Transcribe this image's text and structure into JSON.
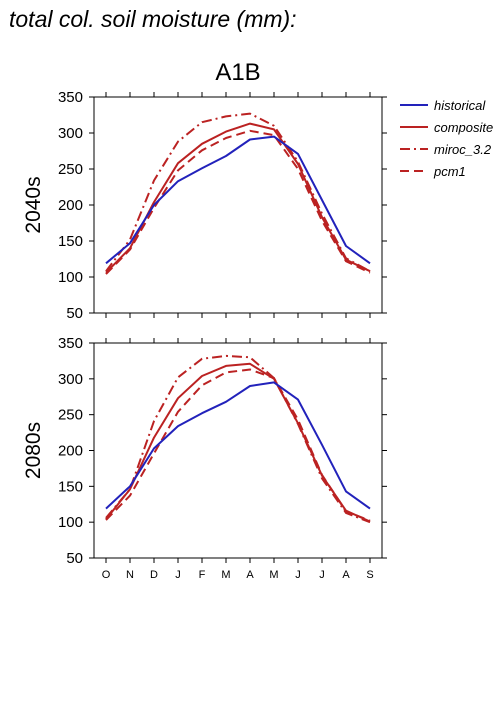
{
  "page": {
    "title": "total col. soil moisture (mm):"
  },
  "chart_data": {
    "type": "line",
    "title": "A1B",
    "categories": [
      "O",
      "N",
      "D",
      "J",
      "F",
      "M",
      "A",
      "M",
      "J",
      "J",
      "A",
      "S"
    ],
    "ylim": [
      50,
      350
    ],
    "yticks": [
      50,
      100,
      150,
      200,
      250,
      300,
      350
    ],
    "grid": false,
    "legend": {
      "position": "top-right",
      "entries": [
        {
          "name": "historical",
          "color": "#2222bb",
          "dash": "solid"
        },
        {
          "name": "composite",
          "color": "#bb2222",
          "dash": "solid"
        },
        {
          "name": "miroc_3.2",
          "color": "#bb2222",
          "dash": "dashdot"
        },
        {
          "name": "pcm1",
          "color": "#bb2222",
          "dash": "dashed"
        }
      ]
    },
    "panels": [
      {
        "ylabel": "2040s",
        "series": [
          {
            "name": "historical",
            "values": [
              119,
              147,
              200,
              233,
              251,
              268,
              291,
              295,
              271,
              207,
              143,
              119
            ]
          },
          {
            "name": "composite",
            "values": [
              106,
              140,
              204,
              258,
              285,
              302,
              313,
              305,
              257,
              183,
              124,
              108
            ]
          },
          {
            "name": "miroc_3.2",
            "values": [
              108,
              152,
              234,
              288,
              315,
              323,
              327,
              310,
              260,
              188,
              126,
              108
            ]
          },
          {
            "name": "pcm1",
            "values": [
              104,
              138,
              196,
              248,
              276,
              293,
              303,
              297,
              250,
              178,
              122,
              106
            ]
          }
        ]
      },
      {
        "ylabel": "2080s",
        "series": [
          {
            "name": "historical",
            "values": [
              119,
              150,
              203,
              234,
              252,
              268,
              290,
              295,
              271,
              208,
              143,
              119
            ]
          },
          {
            "name": "composite",
            "values": [
              104,
              146,
              218,
              273,
              304,
              318,
              321,
              300,
              238,
              165,
              116,
              101
            ]
          },
          {
            "name": "miroc_3.2",
            "values": [
              106,
              146,
              241,
              302,
              328,
              332,
              330,
              301,
              237,
              161,
              113,
              100
            ]
          },
          {
            "name": "pcm1",
            "values": [
              103,
              137,
              196,
              254,
              291,
              309,
              313,
              301,
              243,
              166,
              115,
              102
            ]
          }
        ]
      }
    ]
  }
}
